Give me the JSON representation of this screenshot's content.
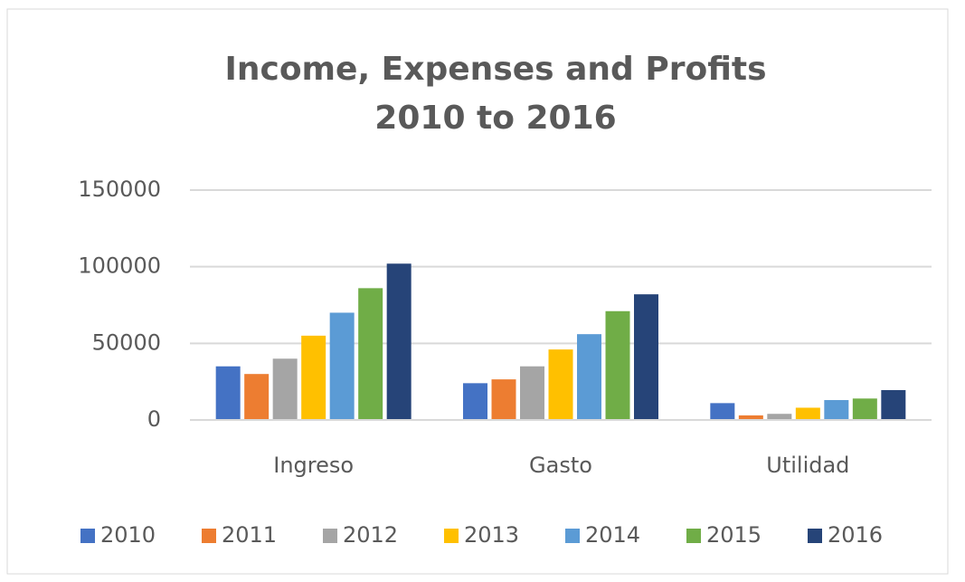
{
  "chart_data": {
    "type": "bar",
    "title": [
      "Income, Expenses and Profits",
      "2010 to 2016"
    ],
    "categories": [
      "Ingreso",
      "Gasto",
      "Utilidad"
    ],
    "series": [
      {
        "name": "2010",
        "color": "#4472c4",
        "values": [
          35000,
          24000,
          11000
        ]
      },
      {
        "name": "2011",
        "color": "#ed7d31",
        "values": [
          30000,
          26500,
          3000
        ]
      },
      {
        "name": "2012",
        "color": "#a5a5a5",
        "values": [
          40000,
          35000,
          4000
        ]
      },
      {
        "name": "2013",
        "color": "#ffc000",
        "values": [
          55000,
          46000,
          8000
        ]
      },
      {
        "name": "2014",
        "color": "#5b9bd5",
        "values": [
          70000,
          56000,
          13000
        ]
      },
      {
        "name": "2015",
        "color": "#70ad47",
        "values": [
          86000,
          71000,
          14000
        ]
      },
      {
        "name": "2016",
        "color": "#264478",
        "values": [
          102000,
          82000,
          19500
        ]
      }
    ],
    "ylim": [
      0,
      150000
    ],
    "yticks": [
      0,
      50000,
      100000,
      150000
    ],
    "grid": true,
    "legend": "bottom"
  }
}
